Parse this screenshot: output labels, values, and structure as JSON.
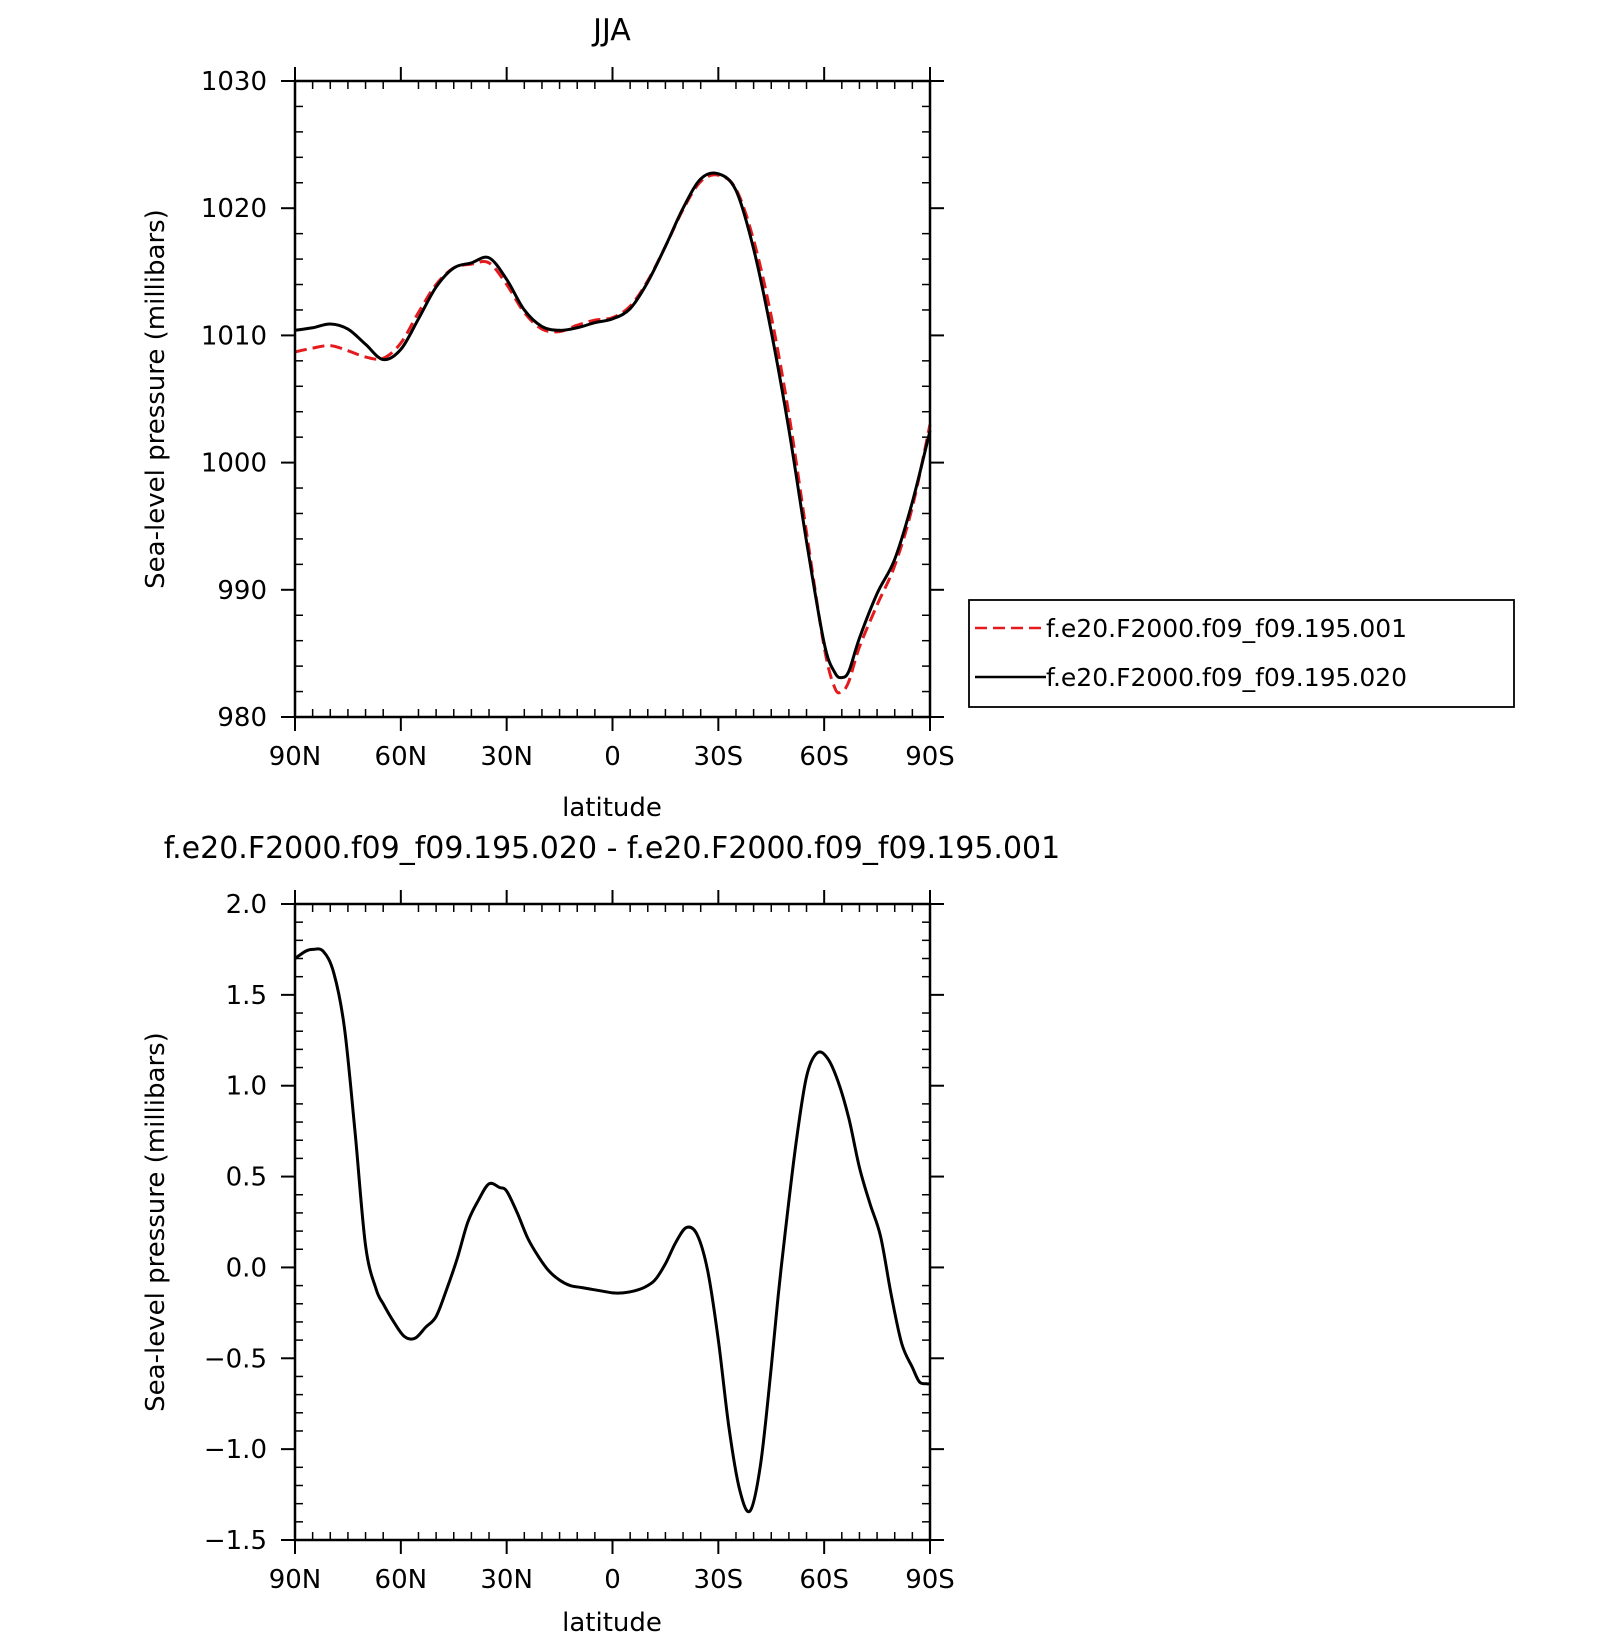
{
  "chart_data": [
    {
      "type": "line",
      "title": "JJA",
      "xlabel": "latitude",
      "ylabel": "Sea-level pressure (millibars)",
      "x_tick_labels": [
        "90N",
        "60N",
        "30N",
        "0",
        "30S",
        "60S",
        "90S"
      ],
      "x_tick_values": [
        90,
        60,
        30,
        0,
        -30,
        -60,
        -90
      ],
      "xlim": [
        90,
        -90
      ],
      "y_tick_labels": [
        "980",
        "990",
        "1000",
        "1010",
        "1020",
        "1030"
      ],
      "y_tick_values": [
        980,
        990,
        1000,
        1010,
        1020,
        1030
      ],
      "ylim": [
        980,
        1030
      ],
      "grid": false,
      "legend_position": "outside-right",
      "series": [
        {
          "name": "f.e20.F2000.f09_f09.195.001",
          "color": "#e41a1c",
          "dash": "dashed",
          "x": [
            90,
            85,
            80,
            75,
            70,
            65,
            60,
            55,
            50,
            45,
            40,
            35,
            30,
            25,
            20,
            15,
            10,
            5,
            0,
            -5,
            -10,
            -15,
            -20,
            -25,
            -30,
            -35,
            -40,
            -45,
            -50,
            -55,
            -60,
            -63,
            -65,
            -67,
            -70,
            -75,
            -80,
            -85,
            -90
          ],
          "y": [
            1008.7,
            1009.0,
            1009.2,
            1008.8,
            1008.3,
            1008.2,
            1009.4,
            1011.8,
            1014.0,
            1015.3,
            1015.6,
            1015.7,
            1014.0,
            1011.8,
            1010.5,
            1010.3,
            1010.8,
            1011.2,
            1011.4,
            1012.3,
            1014.3,
            1017.0,
            1019.9,
            1022.1,
            1022.6,
            1021.5,
            1017.5,
            1011.5,
            1003.8,
            994.5,
            985.5,
            982.3,
            982.0,
            982.8,
            985.5,
            988.8,
            991.9,
            996.5,
            1003.0
          ]
        },
        {
          "name": "f.e20.F2000.f09_f09.195.020",
          "color": "#000000",
          "dash": "solid",
          "x": [
            90,
            85,
            80,
            75,
            70,
            65,
            60,
            55,
            50,
            45,
            40,
            35,
            30,
            25,
            20,
            15,
            10,
            5,
            0,
            -5,
            -10,
            -15,
            -20,
            -25,
            -30,
            -35,
            -40,
            -45,
            -50,
            -55,
            -60,
            -63,
            -65,
            -67,
            -70,
            -75,
            -80,
            -85,
            -90
          ],
          "y": [
            1010.4,
            1010.6,
            1010.9,
            1010.5,
            1009.3,
            1008.1,
            1008.9,
            1011.3,
            1013.8,
            1015.3,
            1015.7,
            1016.1,
            1014.4,
            1012.0,
            1010.7,
            1010.4,
            1010.6,
            1011.0,
            1011.3,
            1012.1,
            1014.2,
            1017.0,
            1020.0,
            1022.3,
            1022.7,
            1021.4,
            1016.8,
            1010.3,
            1002.6,
            993.8,
            985.8,
            983.5,
            983.1,
            983.6,
            986.2,
            989.7,
            992.4,
            996.9,
            1002.5
          ]
        }
      ]
    },
    {
      "type": "line",
      "title": "f.e20.F2000.f09_f09.195.020 - f.e20.F2000.f09_f09.195.001",
      "xlabel": "latitude",
      "ylabel": "Sea-level pressure (millibars)",
      "x_tick_labels": [
        "90N",
        "60N",
        "30N",
        "0",
        "30S",
        "60S",
        "90S"
      ],
      "x_tick_values": [
        90,
        60,
        30,
        0,
        -30,
        -60,
        -90
      ],
      "xlim": [
        90,
        -90
      ],
      "y_tick_labels": [
        "2.0",
        "1.5",
        "1.0",
        "0.5",
        "0.0",
        "−0.5",
        "−1.0",
        "−1.5"
      ],
      "y_tick_values": [
        2.0,
        1.5,
        1.0,
        0.5,
        0.0,
        -0.5,
        -1.0,
        -1.5
      ],
      "ylim": [
        -1.5,
        2.0
      ],
      "grid": false,
      "series": [
        {
          "color": "#000000",
          "dash": "solid",
          "x": [
            90,
            87,
            85,
            82,
            79,
            76,
            73,
            70,
            67,
            65,
            62,
            59,
            56,
            53,
            50,
            47,
            44,
            41,
            38,
            35,
            32,
            30,
            27,
            24,
            21,
            18,
            15,
            12,
            9,
            6,
            3,
            0,
            -3,
            -6,
            -9,
            -12,
            -15,
            -18,
            -21,
            -24,
            -27,
            -30,
            -33,
            -36,
            -39,
            -42,
            -45,
            -47,
            -49,
            -52,
            -55,
            -58,
            -61,
            -64,
            -67,
            -70,
            -73,
            -76,
            -79,
            -82,
            -85,
            -87,
            -89,
            -90
          ],
          "y": [
            1.7,
            1.74,
            1.75,
            1.74,
            1.62,
            1.32,
            0.75,
            0.12,
            -0.12,
            -0.2,
            -0.3,
            -0.38,
            -0.39,
            -0.33,
            -0.27,
            -0.12,
            0.05,
            0.25,
            0.37,
            0.46,
            0.44,
            0.42,
            0.3,
            0.16,
            0.06,
            -0.02,
            -0.07,
            -0.1,
            -0.11,
            -0.12,
            -0.13,
            -0.14,
            -0.14,
            -0.13,
            -0.11,
            -0.07,
            0.02,
            0.14,
            0.22,
            0.18,
            -0.02,
            -0.4,
            -0.88,
            -1.22,
            -1.34,
            -1.08,
            -0.55,
            -0.15,
            0.2,
            0.68,
            1.05,
            1.18,
            1.15,
            1.02,
            0.82,
            0.55,
            0.35,
            0.17,
            -0.15,
            -0.42,
            -0.55,
            -0.63,
            -0.64,
            -0.64
          ]
        }
      ]
    }
  ]
}
